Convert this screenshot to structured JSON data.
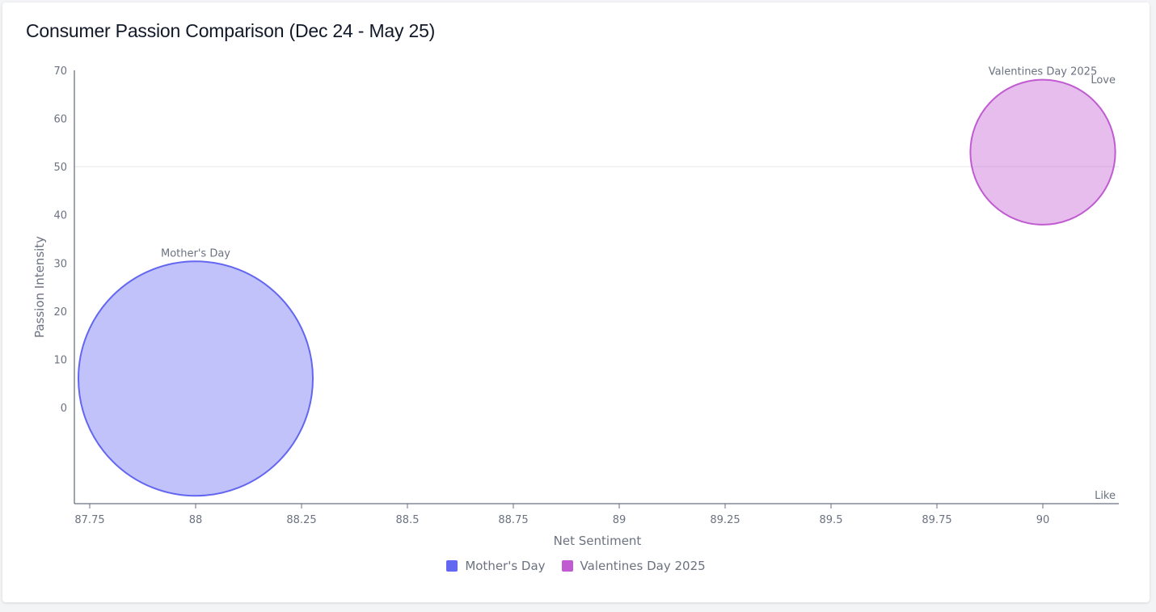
{
  "title": "Consumer Passion Comparison (Dec 24 - May 25)",
  "colors": {
    "mothers_day": "#6366f1",
    "valentines": "#c05bd1",
    "axis": "#6b7280",
    "gridline": "#e5e7eb"
  },
  "chart_data": {
    "type": "scatter",
    "variant": "bubble",
    "title": "Consumer Passion Comparison (Dec 24 - May 25)",
    "xlabel": "Net Sentiment",
    "ylabel": "Passion Intensity",
    "xlim": [
      87.72,
      89.95
    ],
    "ylim": [
      -20,
      70
    ],
    "x_ticks": [
      87.75,
      88,
      88.25,
      88.5,
      88.75,
      89,
      89.25,
      89.5,
      89.75,
      90
    ],
    "x_tick_labels": [
      "87.75",
      "88",
      "88.25",
      "88.5",
      "88.75",
      "89",
      "89.25",
      "89.5",
      "89.75",
      "90"
    ],
    "y_ticks": [
      0,
      10,
      20,
      30,
      40,
      50,
      60,
      70
    ],
    "y_tick_labels": [
      "0",
      "10",
      "20",
      "30",
      "40",
      "50",
      "60",
      "70"
    ],
    "reference_line_y": 50,
    "corner_labels": {
      "top_right": "Love",
      "bottom_right": "Like"
    },
    "grid": false,
    "legend_position": "bottom-center",
    "series": [
      {
        "name": "Mother's Day",
        "label": "Mother's Day",
        "x": 88,
        "y": 6,
        "size": 1,
        "color_key": "mothers_day"
      },
      {
        "name": "Valentines Day 2025",
        "label": "Valentines Day 2025",
        "x": 90,
        "y": 53,
        "size": 0.382,
        "color_key": "valentines"
      }
    ]
  }
}
